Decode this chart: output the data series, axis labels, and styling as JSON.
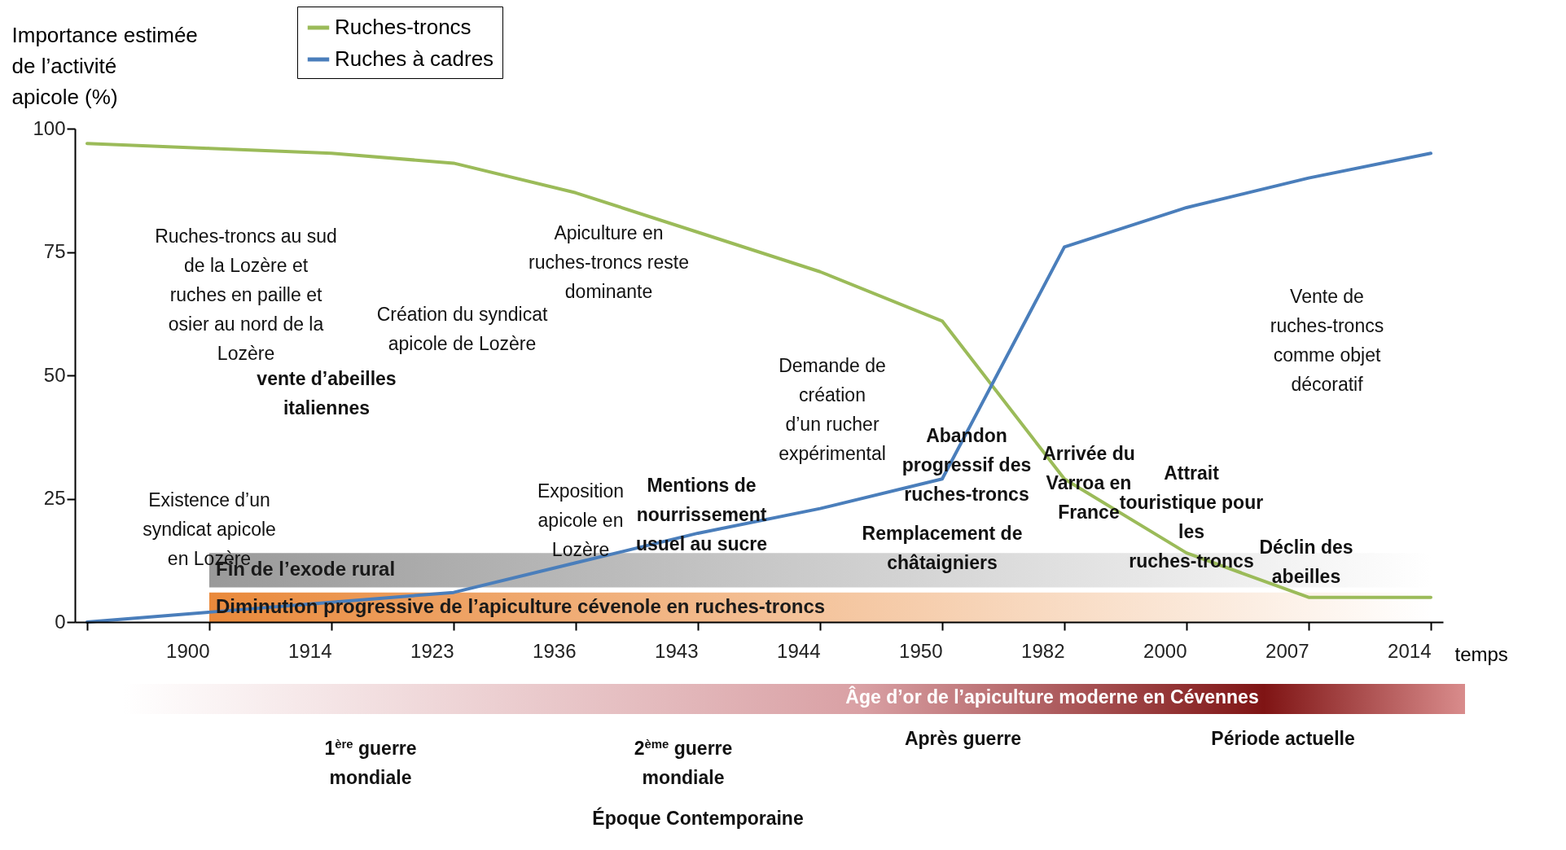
{
  "chart_data": {
    "type": "line",
    "ylabel": "Importance estimée de l’activité apicole (%)",
    "xlabel": "temps",
    "categories": [
      null,
      "1900",
      "1914",
      "1923",
      "1936",
      "1943",
      "1944",
      "1950",
      "1982",
      "2000",
      "2007",
      "2014"
    ],
    "series": [
      {
        "name": "Ruches-troncs",
        "color": "#9bbb59",
        "values": [
          97,
          96,
          95,
          93,
          87,
          79,
          71,
          61,
          29,
          14,
          5,
          5
        ]
      },
      {
        "name": "Ruches à cadres",
        "color": "#4a7ebb",
        "values": [
          0,
          2,
          4,
          6,
          12,
          18,
          23,
          29,
          76,
          84,
          90,
          95
        ]
      }
    ],
    "ylim": [
      0,
      100
    ],
    "yticks": [
      0,
      25,
      50,
      75,
      100
    ],
    "grid": false,
    "legend": "top left",
    "marker": "none",
    "line_style": "solid",
    "bands": [
      {
        "axis": "y",
        "from": 0,
        "to": 6,
        "label": "Diminution progressive de l’apiculture cévenole en ruches-troncs",
        "color": "#e46c0a"
      },
      {
        "axis": "y",
        "from": 7,
        "to": 14,
        "label": "Fin de l’exode rural",
        "color": "#808080"
      }
    ],
    "annotations": [
      "Ruches-troncs au sud de la Lozère et ruches en paille et osier au nord de la Lozère",
      "Apiculture en ruches-troncs reste dominante",
      "Création du syndicat apicole de Lozère",
      "vente d’abeilles italiennes",
      "Existence d’un syndicat apicole en Lozère",
      "Exposition apicole en Lozère",
      "Mentions de nourrissement usuel au sucre",
      "Demande de création d’un rucher expérimental",
      "Remplacement de châtaigniers",
      "Abandon progressif des ruches-troncs",
      "Arrivée du Varroa en France",
      "Attrait touristique pour les ruches-troncs",
      "Vente de ruches-troncs comme objet décoratif",
      "Déclin des abeilles",
      "1$^{ère}$ guerre mondiale",
      "2$^{ème}$ guerre mondiale",
      "Après guerre",
      "Période actuelle",
      "Époque Contemporaine",
      "Âge d’or de l’apiculture moderne en Cévennes"
    ]
  }
}
